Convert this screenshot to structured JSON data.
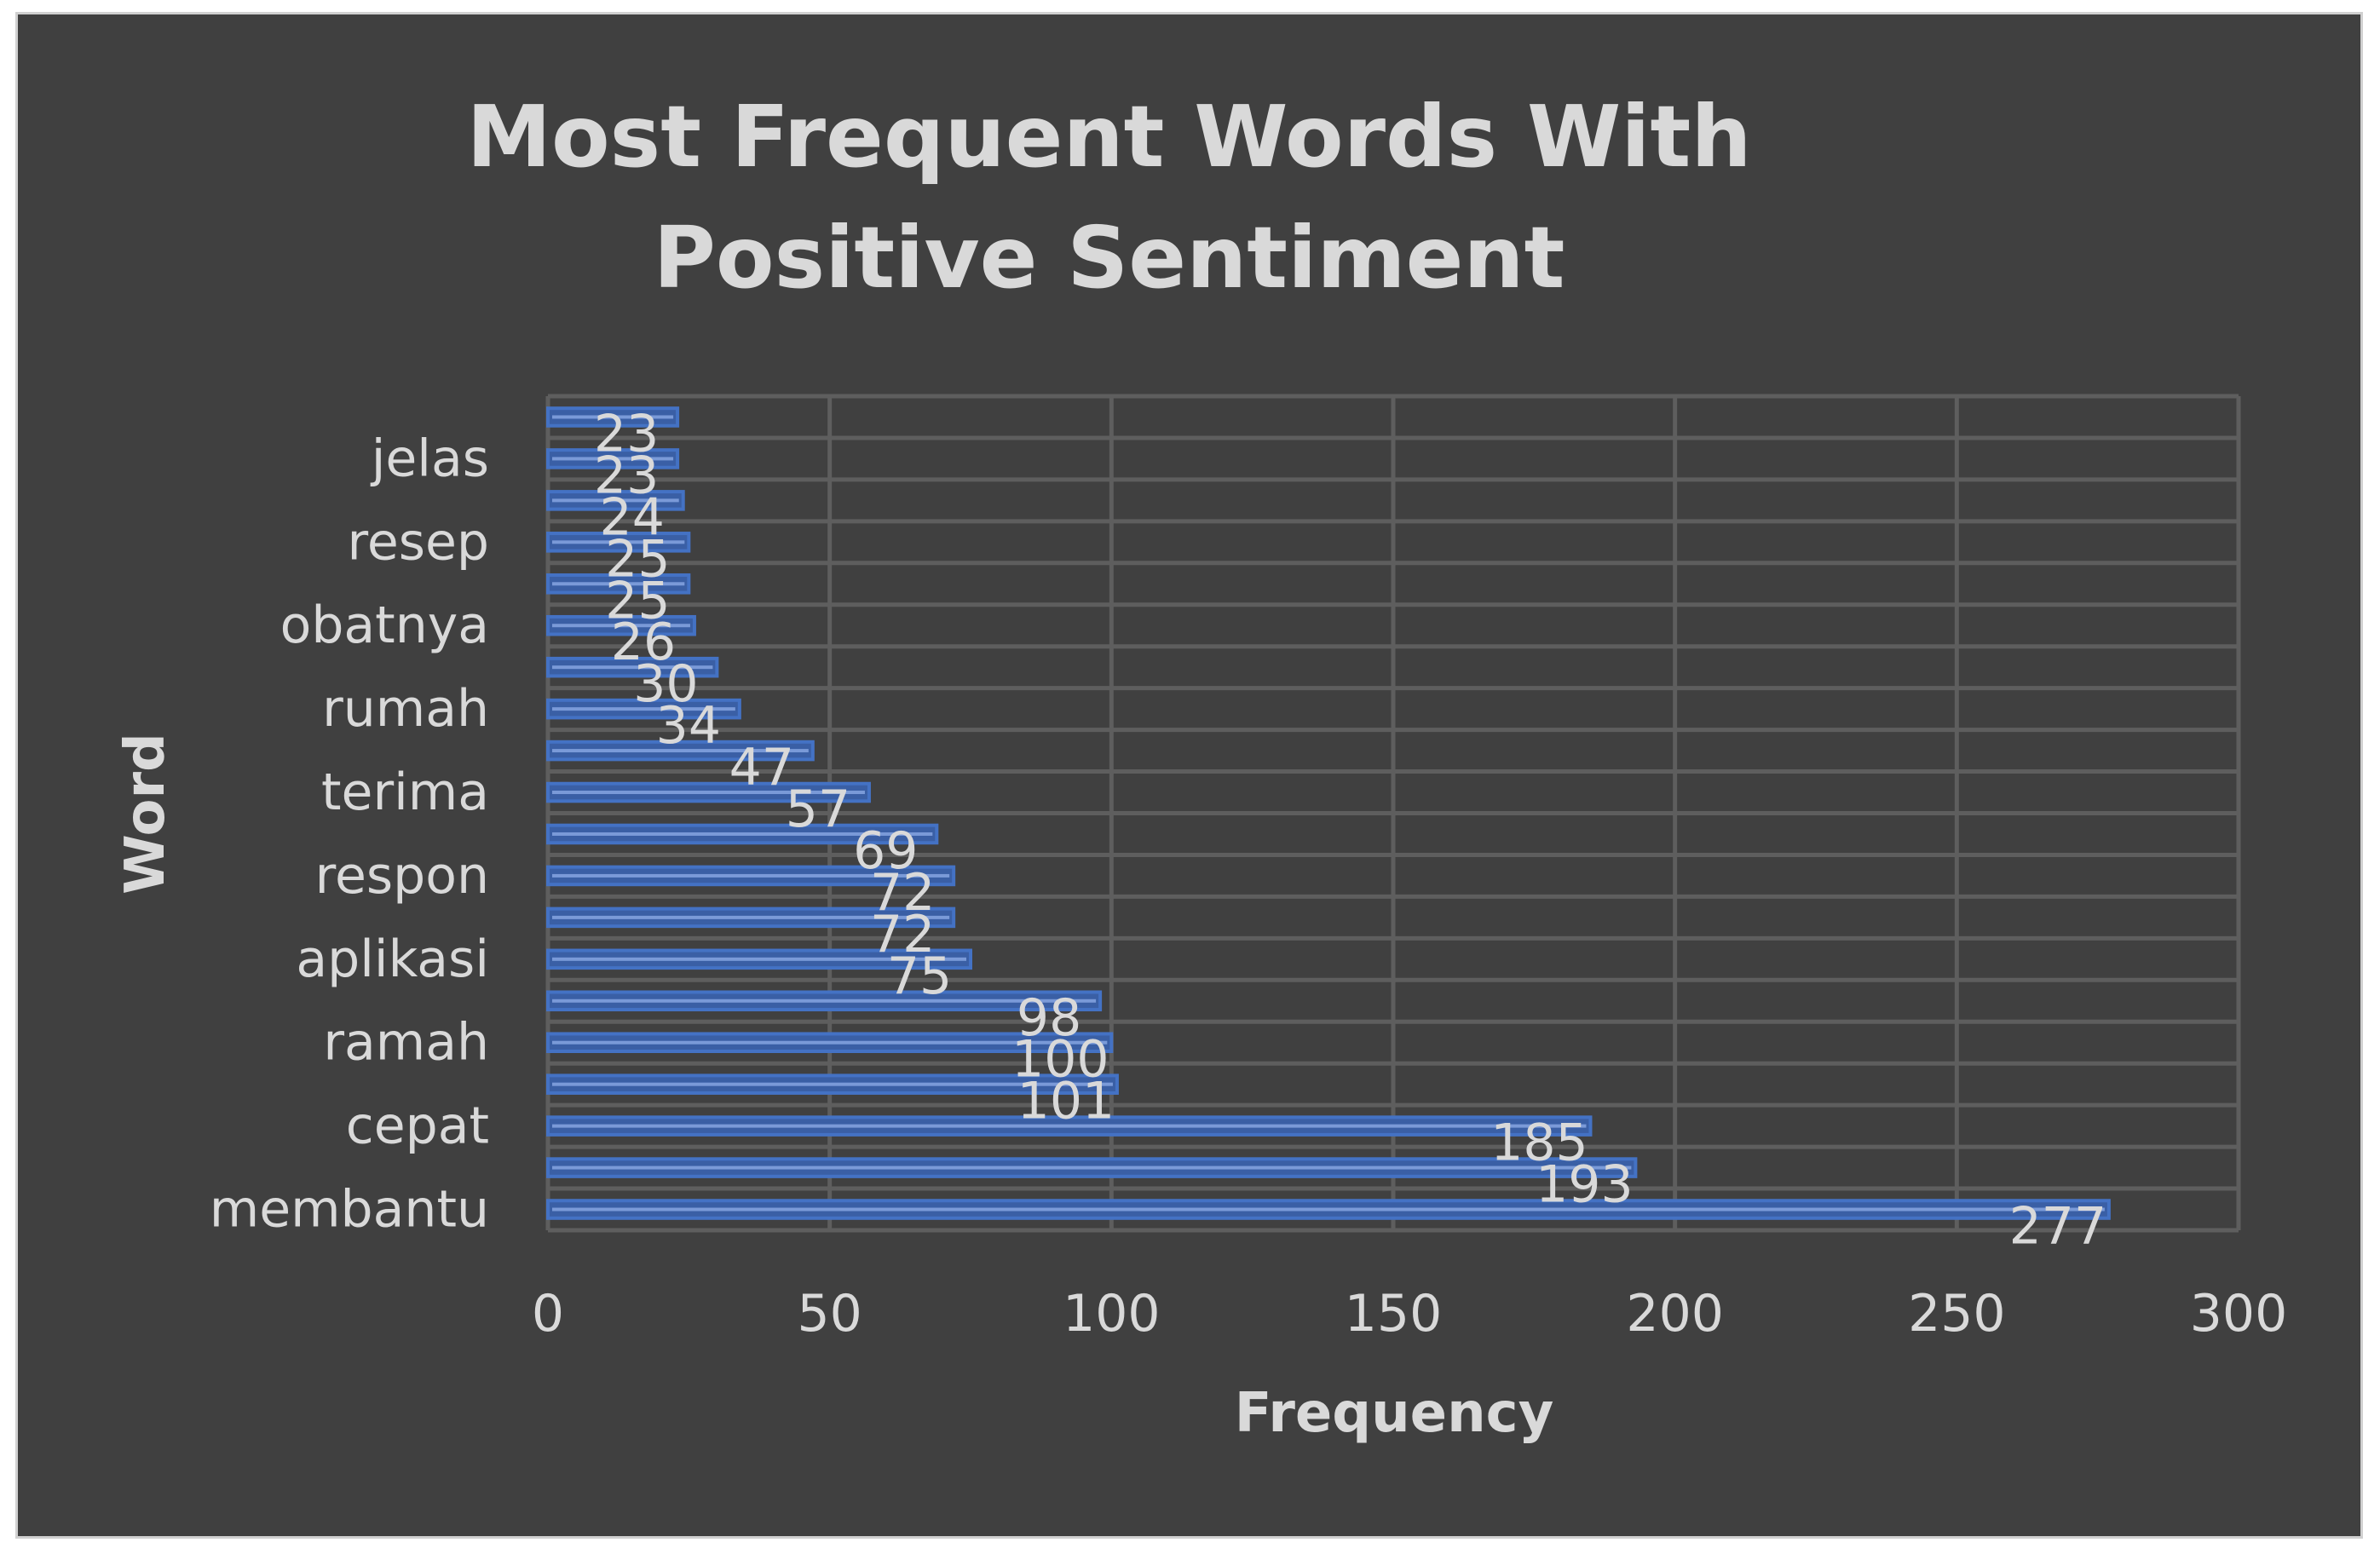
{
  "chart_data": {
    "type": "bar",
    "orientation": "horizontal",
    "title": "Most Frequent Words With Positive Sentiment",
    "xlabel": "Frequency",
    "ylabel": "Word",
    "xlim": [
      0,
      300
    ],
    "xticks": [
      0,
      50,
      100,
      150,
      200,
      250,
      300
    ],
    "grid": true,
    "legend": "none",
    "bar_color": "#4472c4",
    "background": "#404040",
    "text_color": "#d9d9d9",
    "categories": [
      "membantu",
      "",
      "cepat",
      "",
      "ramah",
      "",
      "aplikasi",
      "",
      "respon",
      "",
      "terima",
      "",
      "rumah",
      "",
      "obatnya",
      "",
      "resep",
      "",
      "jelas",
      ""
    ],
    "values": [
      277,
      193,
      185,
      101,
      100,
      98,
      75,
      72,
      72,
      69,
      57,
      47,
      34,
      30,
      26,
      25,
      25,
      24,
      23,
      23
    ]
  }
}
